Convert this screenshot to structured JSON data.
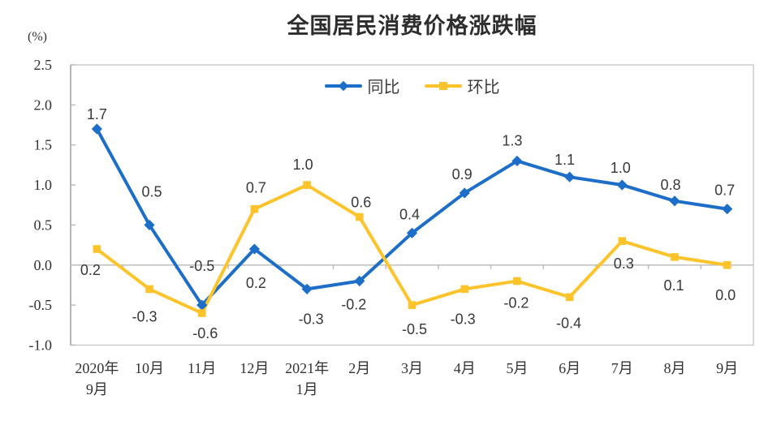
{
  "chart_data": {
    "type": "line",
    "title": "全国居民消费价格涨跌幅",
    "unit_label": "(%)",
    "categories": [
      [
        "2020年",
        "9月"
      ],
      [
        "10月"
      ],
      [
        "11月"
      ],
      [
        "12月"
      ],
      [
        "2021年",
        "1月"
      ],
      [
        "2月"
      ],
      [
        "3月"
      ],
      [
        "4月"
      ],
      [
        "5月"
      ],
      [
        "6月"
      ],
      [
        "7月"
      ],
      [
        "8月"
      ],
      [
        "9月"
      ]
    ],
    "series": [
      {
        "name": "同比",
        "marker": "diamond",
        "color": "#1c6ec8",
        "values": [
          1.7,
          0.5,
          -0.5,
          0.2,
          -0.3,
          -0.2,
          0.4,
          0.9,
          1.3,
          1.1,
          1.0,
          0.8,
          0.7
        ],
        "label_offsets": [
          [
            0,
            -18
          ],
          [
            3,
            -41
          ],
          [
            0,
            -48
          ],
          [
            2,
            42
          ],
          [
            5,
            37
          ],
          [
            -7,
            29
          ],
          [
            -3,
            -23
          ],
          [
            -3,
            -23
          ],
          [
            -6,
            -25
          ],
          [
            -6,
            -21
          ],
          [
            -2,
            -21
          ],
          [
            -5,
            -20
          ],
          [
            -3,
            -23
          ]
        ]
      },
      {
        "name": "环比",
        "marker": "square",
        "color": "#fcc32b",
        "values": [
          0.2,
          -0.3,
          -0.6,
          0.7,
          1.0,
          0.6,
          -0.5,
          -0.3,
          -0.2,
          -0.4,
          0.3,
          0.1,
          0.0
        ],
        "label_offsets": [
          [
            -8,
            26
          ],
          [
            -6,
            34
          ],
          [
            4,
            25
          ],
          [
            2,
            -26
          ],
          [
            -5,
            -25
          ],
          [
            2,
            -18
          ],
          [
            3,
            30
          ],
          [
            -2,
            37
          ],
          [
            -1,
            27
          ],
          [
            -1,
            32
          ],
          [
            2,
            28
          ],
          [
            -1,
            35
          ],
          [
            -2,
            37
          ]
        ]
      }
    ],
    "y_axis": {
      "min": -1.0,
      "max": 2.5,
      "step": 0.5,
      "ticks": [
        "2.5",
        "2.0",
        "1.5",
        "1.0",
        "0.5",
        "0.0",
        "-0.5",
        "-1.0"
      ]
    },
    "value_decimals": 1,
    "legend_position": "top-center-inside",
    "grid": "zero-line-only"
  },
  "colors": {
    "yoy_blue": "#1c6ec8",
    "mom_gold": "#fcc32b",
    "zero_line": "#c3c3c3",
    "plot_border": "#c9c9c9",
    "left_axis": "#a8a8a8",
    "tick_mark": "#b9b9b9",
    "text_dark": "#333333"
  }
}
